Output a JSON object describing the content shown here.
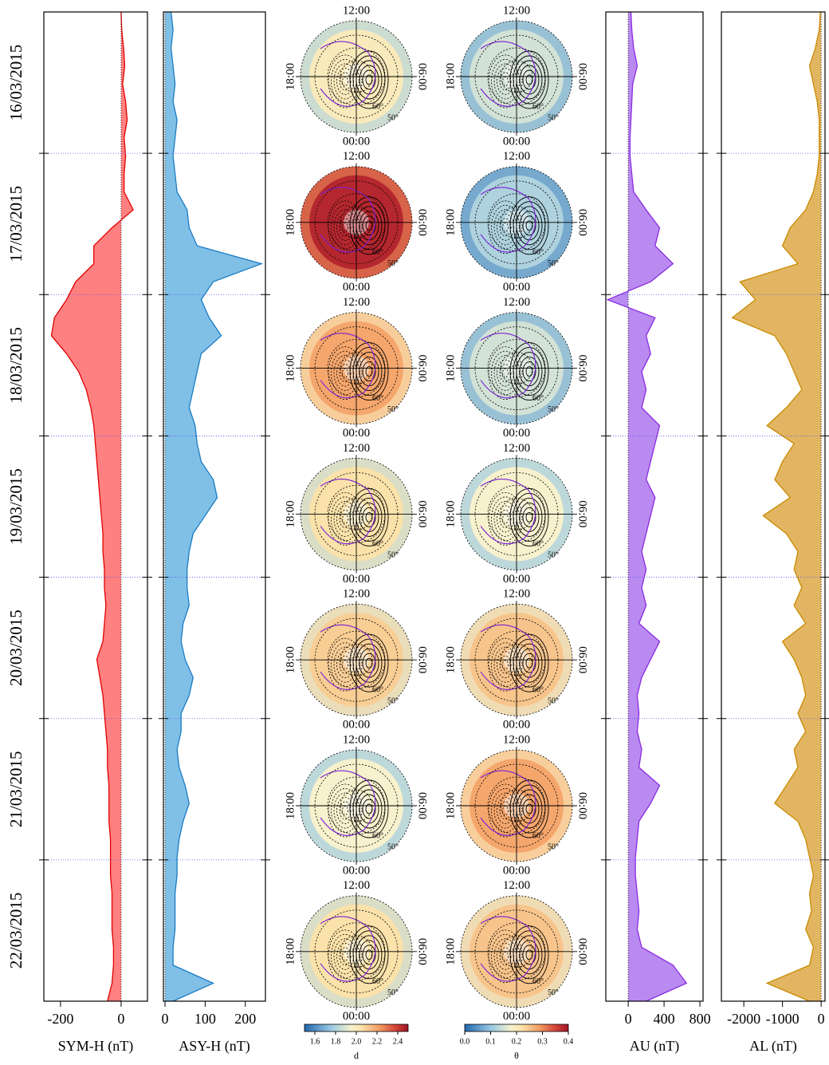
{
  "chart_data": [
    {
      "type": "area",
      "xlabel": "SYM-H (nT)",
      "color": "#ff8080",
      "line_color": "#e00000",
      "categories": [
        "16/03/2015",
        "17/03/2015",
        "18/03/2015",
        "19/03/2015",
        "20/03/2015",
        "21/03/2015",
        "22/03/2015"
      ],
      "values": [
        [
          0,
          2,
          8,
          12,
          5,
          15,
          20,
          10
        ],
        [
          15,
          10,
          10,
          40,
          -30,
          -90,
          -90,
          -150
        ],
        [
          -180,
          -220,
          -230,
          -180,
          -140,
          -115,
          -100,
          -90
        ],
        [
          -85,
          -80,
          -75,
          -70,
          -65,
          -60,
          -60,
          -55
        ],
        [
          -55,
          -50,
          -55,
          -60,
          -80,
          -70,
          -60,
          -55
        ],
        [
          -50,
          -45,
          -45,
          -40,
          -40,
          -40,
          -35,
          -35
        ],
        [
          -35,
          -30,
          -30,
          -30,
          -25,
          -25,
          -30,
          -45
        ]
      ],
      "xlim": [
        -255,
        87
      ],
      "xticks": [
        -200,
        0
      ]
    },
    {
      "type": "area",
      "xlabel": "ASY-H (nT)",
      "color": "#80bfe6",
      "line_color": "#1a7cc4",
      "values": [
        [
          15,
          20,
          15,
          20,
          25,
          20,
          30,
          25
        ],
        [
          20,
          25,
          30,
          55,
          60,
          80,
          240,
          120
        ],
        [
          90,
          110,
          140,
          90,
          80,
          70,
          60,
          75
        ],
        [
          80,
          90,
          120,
          130,
          100,
          70,
          60,
          55
        ],
        [
          55,
          60,
          45,
          40,
          50,
          70,
          60,
          40
        ],
        [
          40,
          30,
          35,
          50,
          60,
          45,
          35,
          30
        ],
        [
          30,
          25,
          25,
          25,
          20,
          20,
          120,
          20
        ]
      ],
      "xlim": [
        -4,
        250
      ],
      "xticks": [
        0,
        100,
        200
      ]
    },
    {
      "type": "polar_map",
      "clock_labels": [
        "12:00",
        "18:00",
        "06:00",
        "00:00"
      ],
      "lat_labels": [
        "60°",
        "50°"
      ],
      "values": [
        2.0,
        2.45,
        2.2,
        2.05,
        2.1,
        1.95,
        2.05
      ],
      "clim": [
        1.5,
        2.5
      ],
      "cticks": [
        1.6,
        1.8,
        {
          "value": 2,
          "label": "2.0"
        },
        2.2,
        2.4
      ],
      "clabel": "d"
    },
    {
      "type": "polar_map",
      "clock_labels": [
        "12:00",
        "18:00",
        "06:00",
        "00:00"
      ],
      "lat_labels": [
        "60°",
        "50°"
      ],
      "values": [
        0.15,
        0.12,
        0.15,
        0.18,
        0.25,
        0.28,
        0.25
      ],
      "clim": [
        0,
        0.4
      ],
      "cticks": [
        {
          "value": 0,
          "label": "0.0"
        },
        0.1,
        0.2,
        0.3,
        0.4
      ],
      "clabel": "θ"
    },
    {
      "type": "area",
      "xlabel": "AU (nT)",
      "color": "#b98af0",
      "line_color": "#8a2be2",
      "values": [
        [
          30,
          40,
          60,
          100,
          50,
          40,
          30,
          20
        ],
        [
          20,
          40,
          60,
          200,
          350,
          300,
          500,
          250
        ],
        [
          -230,
          300,
          200,
          250,
          150,
          200,
          150,
          350
        ],
        [
          300,
          250,
          200,
          300,
          250,
          200,
          150,
          200
        ],
        [
          150,
          200,
          120,
          350,
          250,
          150,
          100,
          120
        ],
        [
          100,
          150,
          120,
          350,
          250,
          120,
          100,
          80
        ],
        [
          80,
          100,
          120,
          100,
          150,
          500,
          650,
          200
        ]
      ],
      "xlim": [
        -250,
        835
      ],
      "xticks": [
        0,
        400,
        800
      ]
    },
    {
      "type": "area",
      "xlabel": "AL (nT)",
      "color": "#e2b562",
      "line_color": "#c88a00",
      "values": [
        [
          -20,
          -50,
          -150,
          -300,
          -200,
          -100,
          -50,
          -50
        ],
        [
          -50,
          -100,
          -200,
          -400,
          -800,
          -1000,
          -600,
          -2100
        ],
        [
          -1700,
          -2300,
          -1200,
          -900,
          -700,
          -500,
          -900,
          -1400
        ],
        [
          -700,
          -1000,
          -1200,
          -800,
          -1500,
          -900,
          -600,
          -700
        ],
        [
          -500,
          -700,
          -400,
          -1000,
          -700,
          -500,
          -400,
          -600
        ],
        [
          -400,
          -700,
          -600,
          -900,
          -1200,
          -600,
          -400,
          -300
        ],
        [
          -200,
          -300,
          -250,
          -400,
          -200,
          -300,
          -1400,
          -300
        ]
      ],
      "xlim": [
        -2580,
        100
      ],
      "xticks": [
        -2000,
        -1000,
        0
      ]
    }
  ]
}
